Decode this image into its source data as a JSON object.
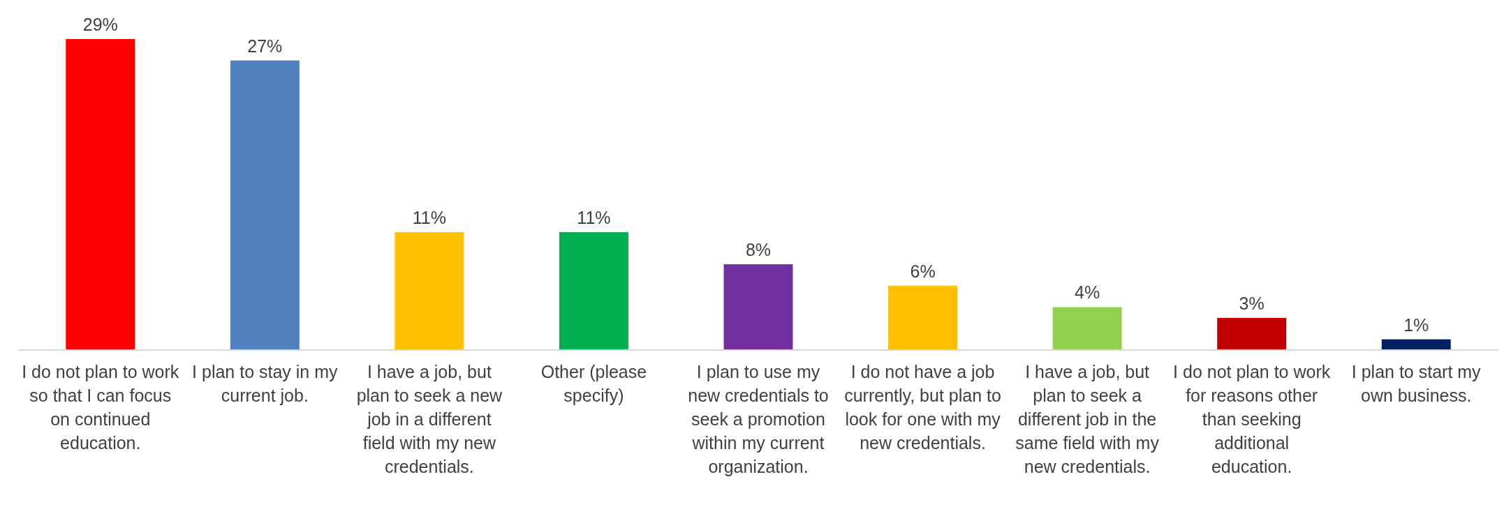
{
  "chart_data": {
    "type": "bar",
    "categories": [
      "I do not plan to work so that I can focus on continued education.",
      "I plan to stay in my current job.",
      "I have a job, but plan to seek a new job in a different field with my new credentials.",
      "Other (please specify)",
      "I plan to use my new credentials to seek a promotion within my current organization.",
      "I do not have a job currently, but plan to look for one with my new credentials.",
      "I have a job, but plan to seek a different job in the same field with my new credentials.",
      "I do not plan to work for reasons other than seeking additional education.",
      "I plan to start my own business."
    ],
    "values": [
      29,
      27,
      11,
      11,
      8,
      6,
      4,
      3,
      1
    ],
    "colors": [
      "#ff0000",
      "#4f81bd",
      "#ffc000",
      "#00b050",
      "#7030a0",
      "#ffc000",
      "#92d050",
      "#c00000",
      "#002060"
    ],
    "value_labels": [
      "29%",
      "27%",
      "11%",
      "11%",
      "8%",
      "6%",
      "4%",
      "3%",
      "1%"
    ]
  }
}
